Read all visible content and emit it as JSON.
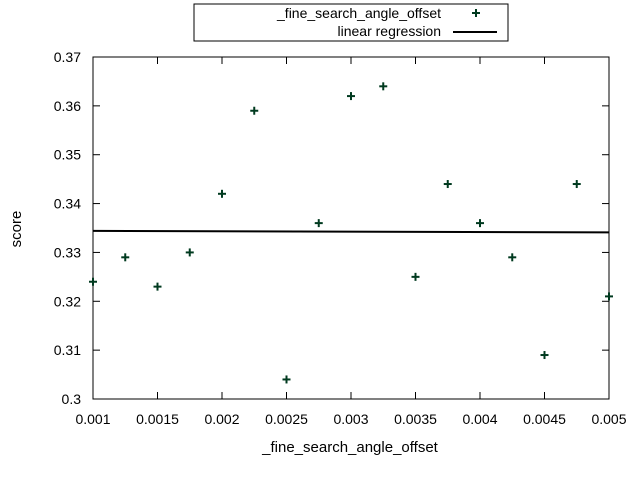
{
  "chart_data": {
    "type": "scatter",
    "title": "",
    "xlabel": "_fine_search_angle_offset",
    "ylabel": "score",
    "xlim": [
      0.001,
      0.005
    ],
    "ylim": [
      0.3,
      0.37
    ],
    "x_ticks": [
      "0.001",
      "0.0015",
      "0.002",
      "0.0025",
      "0.003",
      "0.0035",
      "0.004",
      "0.0045",
      "0.005"
    ],
    "y_ticks": [
      "0.3",
      "0.31",
      "0.32",
      "0.33",
      "0.34",
      "0.35",
      "0.36",
      "0.37"
    ],
    "grid": false,
    "legend_position": "top-center",
    "series": [
      {
        "name": "_fine_search_angle_offset",
        "kind": "points",
        "marker": "plus",
        "color": "#003a1f",
        "x": [
          0.001,
          0.00125,
          0.0015,
          0.00175,
          0.002,
          0.00225,
          0.0025,
          0.00275,
          0.003,
          0.00325,
          0.0035,
          0.00375,
          0.004,
          0.00425,
          0.0045,
          0.00475,
          0.005
        ],
        "y": [
          0.324,
          0.329,
          0.323,
          0.33,
          0.342,
          0.359,
          0.304,
          0.336,
          0.362,
          0.364,
          0.325,
          0.344,
          0.336,
          0.329,
          0.309,
          0.344,
          0.321
        ]
      },
      {
        "name": "linear regression",
        "kind": "line",
        "color": "#000000",
        "x": [
          0.001,
          0.005
        ],
        "y": [
          0.3344,
          0.3341
        ]
      }
    ]
  }
}
